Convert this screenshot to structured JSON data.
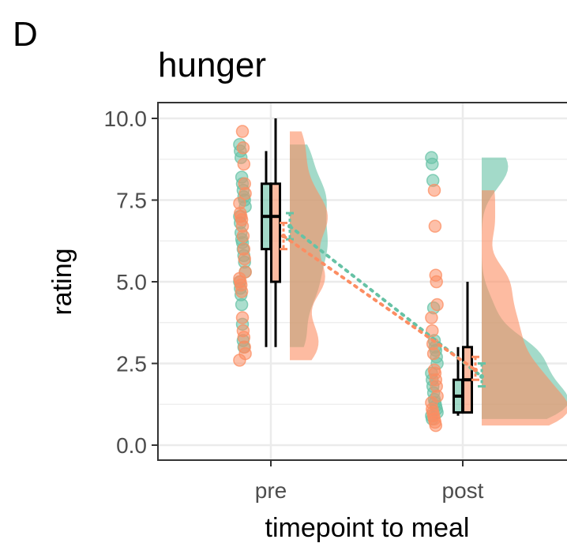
{
  "panel_label": "D",
  "chart_data": {
    "type": "scatter",
    "title": "hunger",
    "xlabel": "timepoint to meal",
    "ylabel": "rating",
    "categories": [
      "pre",
      "post"
    ],
    "ylim": [
      0,
      10
    ],
    "yticks": [
      "0.0",
      "2.5",
      "5.0",
      "7.5",
      "10.0"
    ],
    "grid": true,
    "legend": "none",
    "series": [
      {
        "color": "#66c2a5",
        "points": {
          "pre": [
            9.2,
            9.0,
            8.8,
            8.2,
            8.0,
            7.8,
            7.6,
            7.5,
            7.3,
            7.0,
            6.8,
            6.5,
            6.3,
            6.2,
            6.0,
            5.8,
            5.6,
            5.3,
            5.0,
            4.8,
            4.6,
            4.3,
            3.7,
            3.2,
            3.0
          ],
          "post": [
            8.8,
            8.6,
            8.1,
            4.2,
            3.2,
            3.0,
            2.9,
            2.7,
            2.5,
            2.2,
            2.0,
            1.8,
            1.6,
            1.4,
            1.3,
            1.2,
            1.1,
            1.0,
            0.9,
            0.8
          ]
        },
        "box": {
          "pre": {
            "lower_whisker": 3.0,
            "q1": 6.0,
            "median": 7.0,
            "q3": 8.0,
            "upper_whisker": 9.0
          },
          "post": {
            "lower_whisker": 0.9,
            "q1": 1.0,
            "median": 1.5,
            "q3": 2.0,
            "upper_whisker": 3.0
          }
        },
        "mean": {
          "pre": 6.7,
          "post": 2.1
        },
        "ci": {
          "pre": [
            6.3,
            7.1
          ],
          "post": [
            1.8,
            2.5
          ]
        }
      },
      {
        "color": "#fc8d62",
        "points": {
          "pre": [
            9.6,
            9.1,
            8.6,
            8.0,
            7.7,
            7.4,
            7.1,
            7.0,
            6.9,
            6.7,
            6.4,
            6.0,
            5.7,
            5.3,
            5.1,
            5.0,
            4.9,
            4.7,
            3.9,
            3.5,
            3.3,
            3.0,
            2.8,
            2.6
          ],
          "post": [
            7.8,
            6.7,
            5.2,
            5.0,
            4.3,
            3.9,
            3.5,
            3.1,
            2.8,
            2.3,
            2.2,
            2.0,
            1.8,
            1.5,
            1.3,
            1.1,
            1.0,
            0.9,
            0.8,
            0.7,
            0.6
          ]
        },
        "box": {
          "pre": {
            "lower_whisker": 3.0,
            "q1": 5.0,
            "median": 7.0,
            "q3": 8.0,
            "upper_whisker": 10.0
          },
          "post": {
            "lower_whisker": 1.0,
            "q1": 1.0,
            "median": 2.0,
            "q3": 3.0,
            "upper_whisker": 5.0
          }
        },
        "mean": {
          "pre": 6.4,
          "post": 2.3
        },
        "ci": {
          "pre": [
            6.0,
            6.8
          ],
          "post": [
            2.0,
            2.7
          ]
        }
      }
    ]
  }
}
